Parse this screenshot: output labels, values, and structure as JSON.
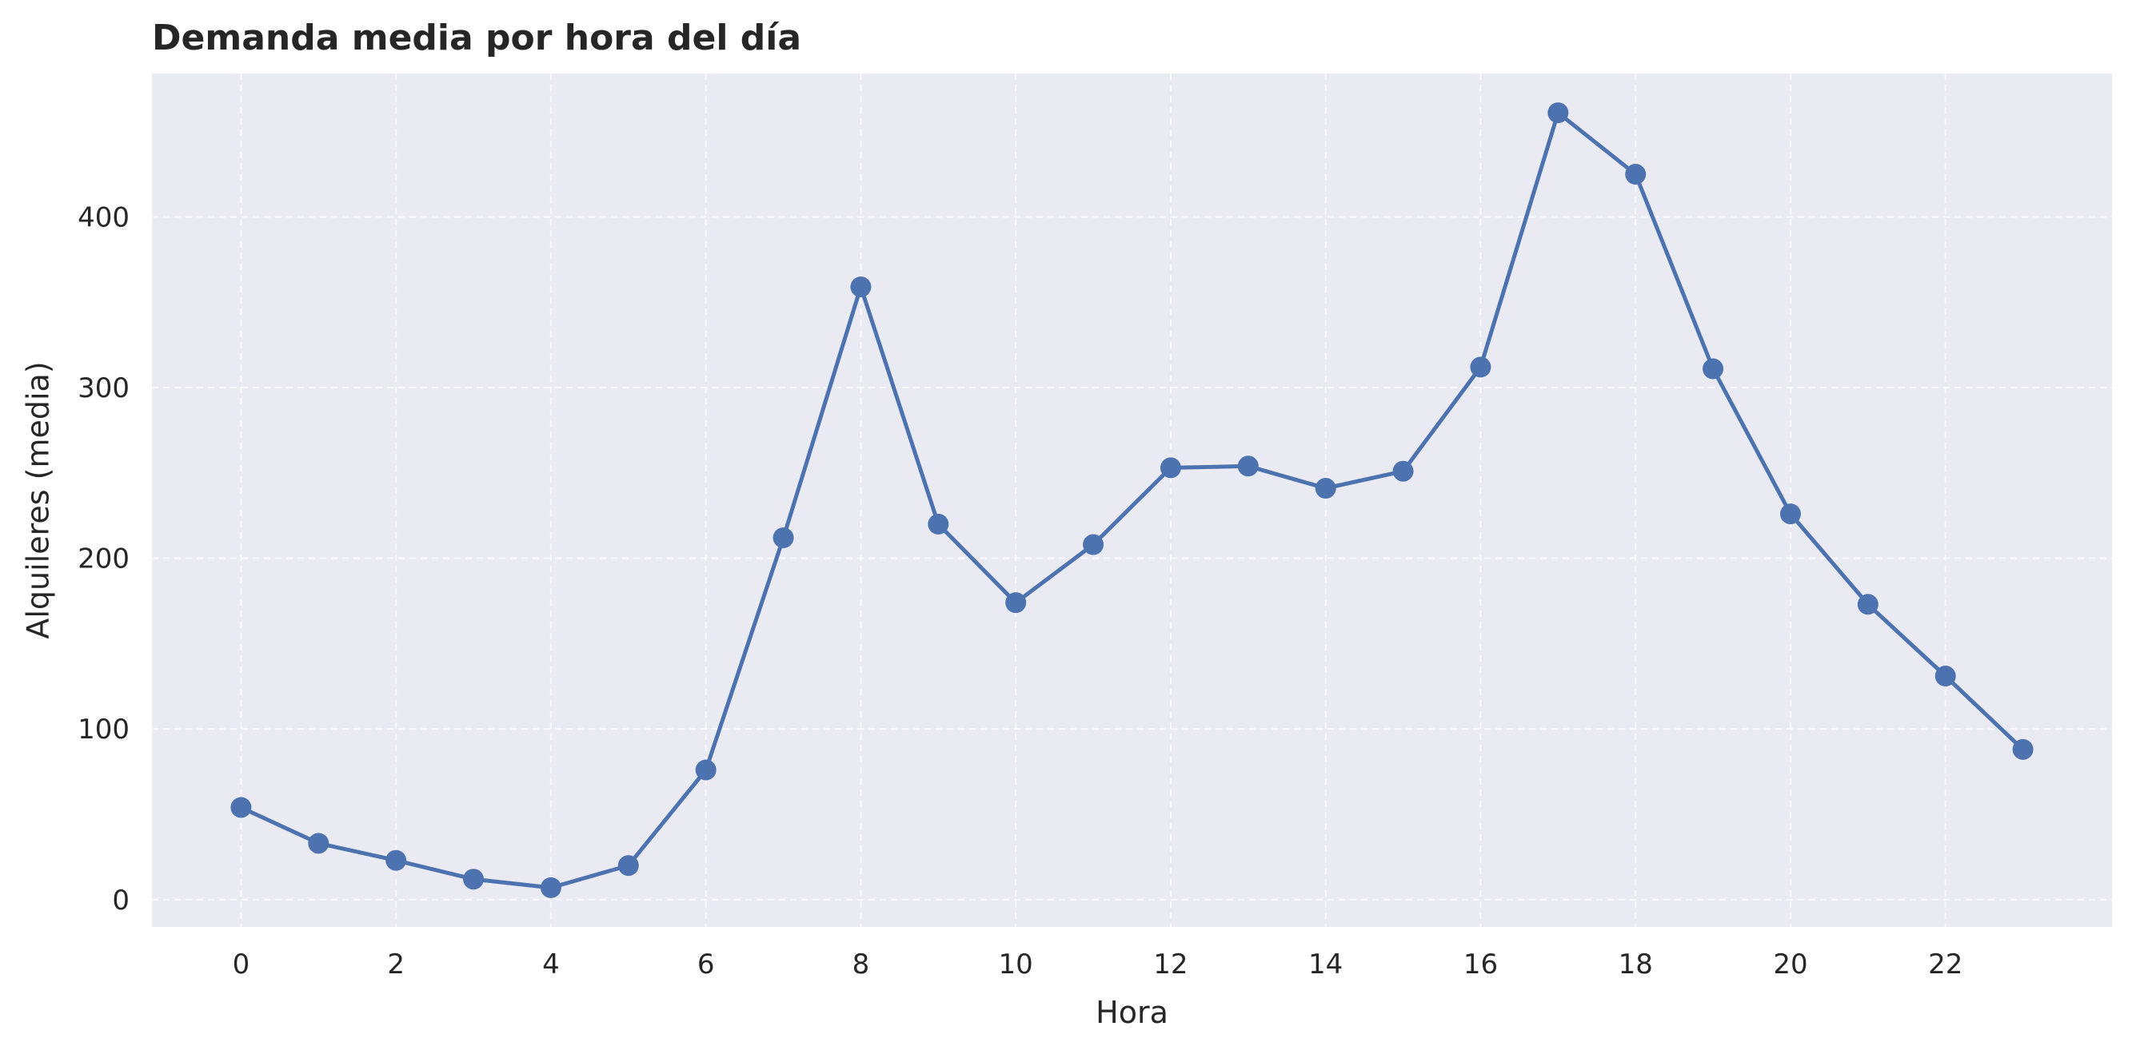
{
  "chart_data": {
    "type": "line",
    "title": "Demanda media por hora del día",
    "xlabel": "Hora",
    "ylabel": "Alquileres (media)",
    "x": [
      0,
      1,
      2,
      3,
      4,
      5,
      6,
      7,
      8,
      9,
      10,
      11,
      12,
      13,
      14,
      15,
      16,
      17,
      18,
      19,
      20,
      21,
      22,
      23
    ],
    "series": [
      {
        "values": [
          54,
          33,
          23,
          12,
          7,
          20,
          76,
          212,
          359,
          220,
          174,
          208,
          253,
          254,
          241,
          251,
          312,
          461,
          425,
          311,
          226,
          173,
          131,
          88
        ],
        "color": "#4c72b0",
        "marker": "circle"
      }
    ],
    "xticks": [
      0,
      2,
      4,
      6,
      8,
      10,
      12,
      14,
      16,
      18,
      20,
      22
    ],
    "yticks": [
      0,
      100,
      200,
      300,
      400
    ],
    "xlim": [
      -1.15,
      24.15
    ],
    "ylim": [
      -16,
      484
    ],
    "grid": true,
    "legend": "none",
    "colors": {
      "background": "#eaeaf2",
      "grid": "#ffffff",
      "text": "#262626"
    }
  }
}
